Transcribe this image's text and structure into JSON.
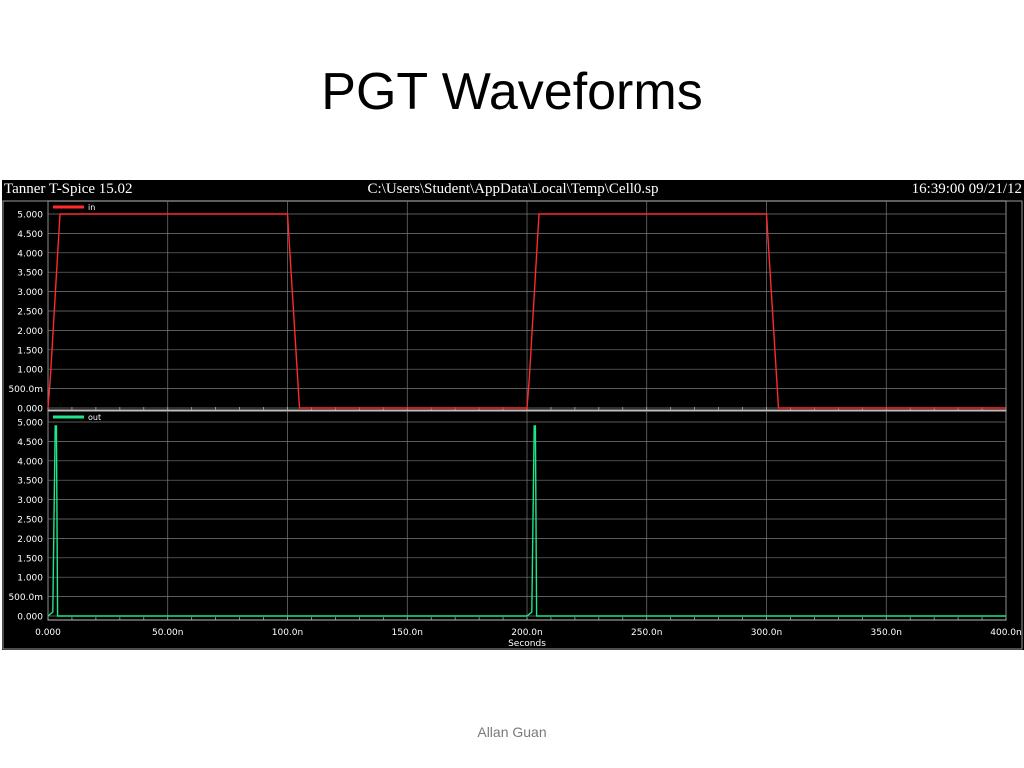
{
  "slide": {
    "title": "PGT Waveforms",
    "footer": "Allan Guan"
  },
  "window": {
    "app_name": "Tanner T-Spice 15.02",
    "file_path": "C:\\Users\\Student\\AppData\\Local\\Temp\\Cell0.sp",
    "timestamp": "16:39:00 09/21/12"
  },
  "chart_data": {
    "type": "line",
    "xlabel": "Seconds",
    "xlim": [
      0,
      400
    ],
    "x_unit": "ns",
    "x_tick_labels": [
      "0.000",
      "50.00n",
      "100.0n",
      "150.0n",
      "200.0n",
      "250.0n",
      "300.0n",
      "350.0n",
      "400.0n"
    ],
    "y_tick_labels": [
      "5.000",
      "4.500",
      "4.000",
      "3.500",
      "3.000",
      "2.500",
      "2.000",
      "1.500",
      "1.000",
      "500.0m",
      "0.000"
    ],
    "ylim": [
      0,
      5
    ],
    "grid": true,
    "background": "#000000",
    "panels": [
      {
        "series": [
          {
            "name": "in",
            "color": "#ff2a2a",
            "x": [
              0,
              1,
              5,
              100,
              105,
              200,
              201,
              205,
              300,
              305,
              400
            ],
            "y": [
              0,
              0.8,
              5,
              5,
              0,
              0,
              0.8,
              5,
              5,
              0,
              0
            ]
          }
        ]
      },
      {
        "series": [
          {
            "name": "out",
            "color": "#1ee68a",
            "x": [
              0,
              2,
              3,
              3.5,
              4,
              200,
              202,
              203,
              203.5,
              204,
              400
            ],
            "y": [
              0,
              0.1,
              4.9,
              4.9,
              0,
              0,
              0.1,
              4.9,
              4.9,
              0,
              0
            ]
          }
        ]
      }
    ]
  }
}
